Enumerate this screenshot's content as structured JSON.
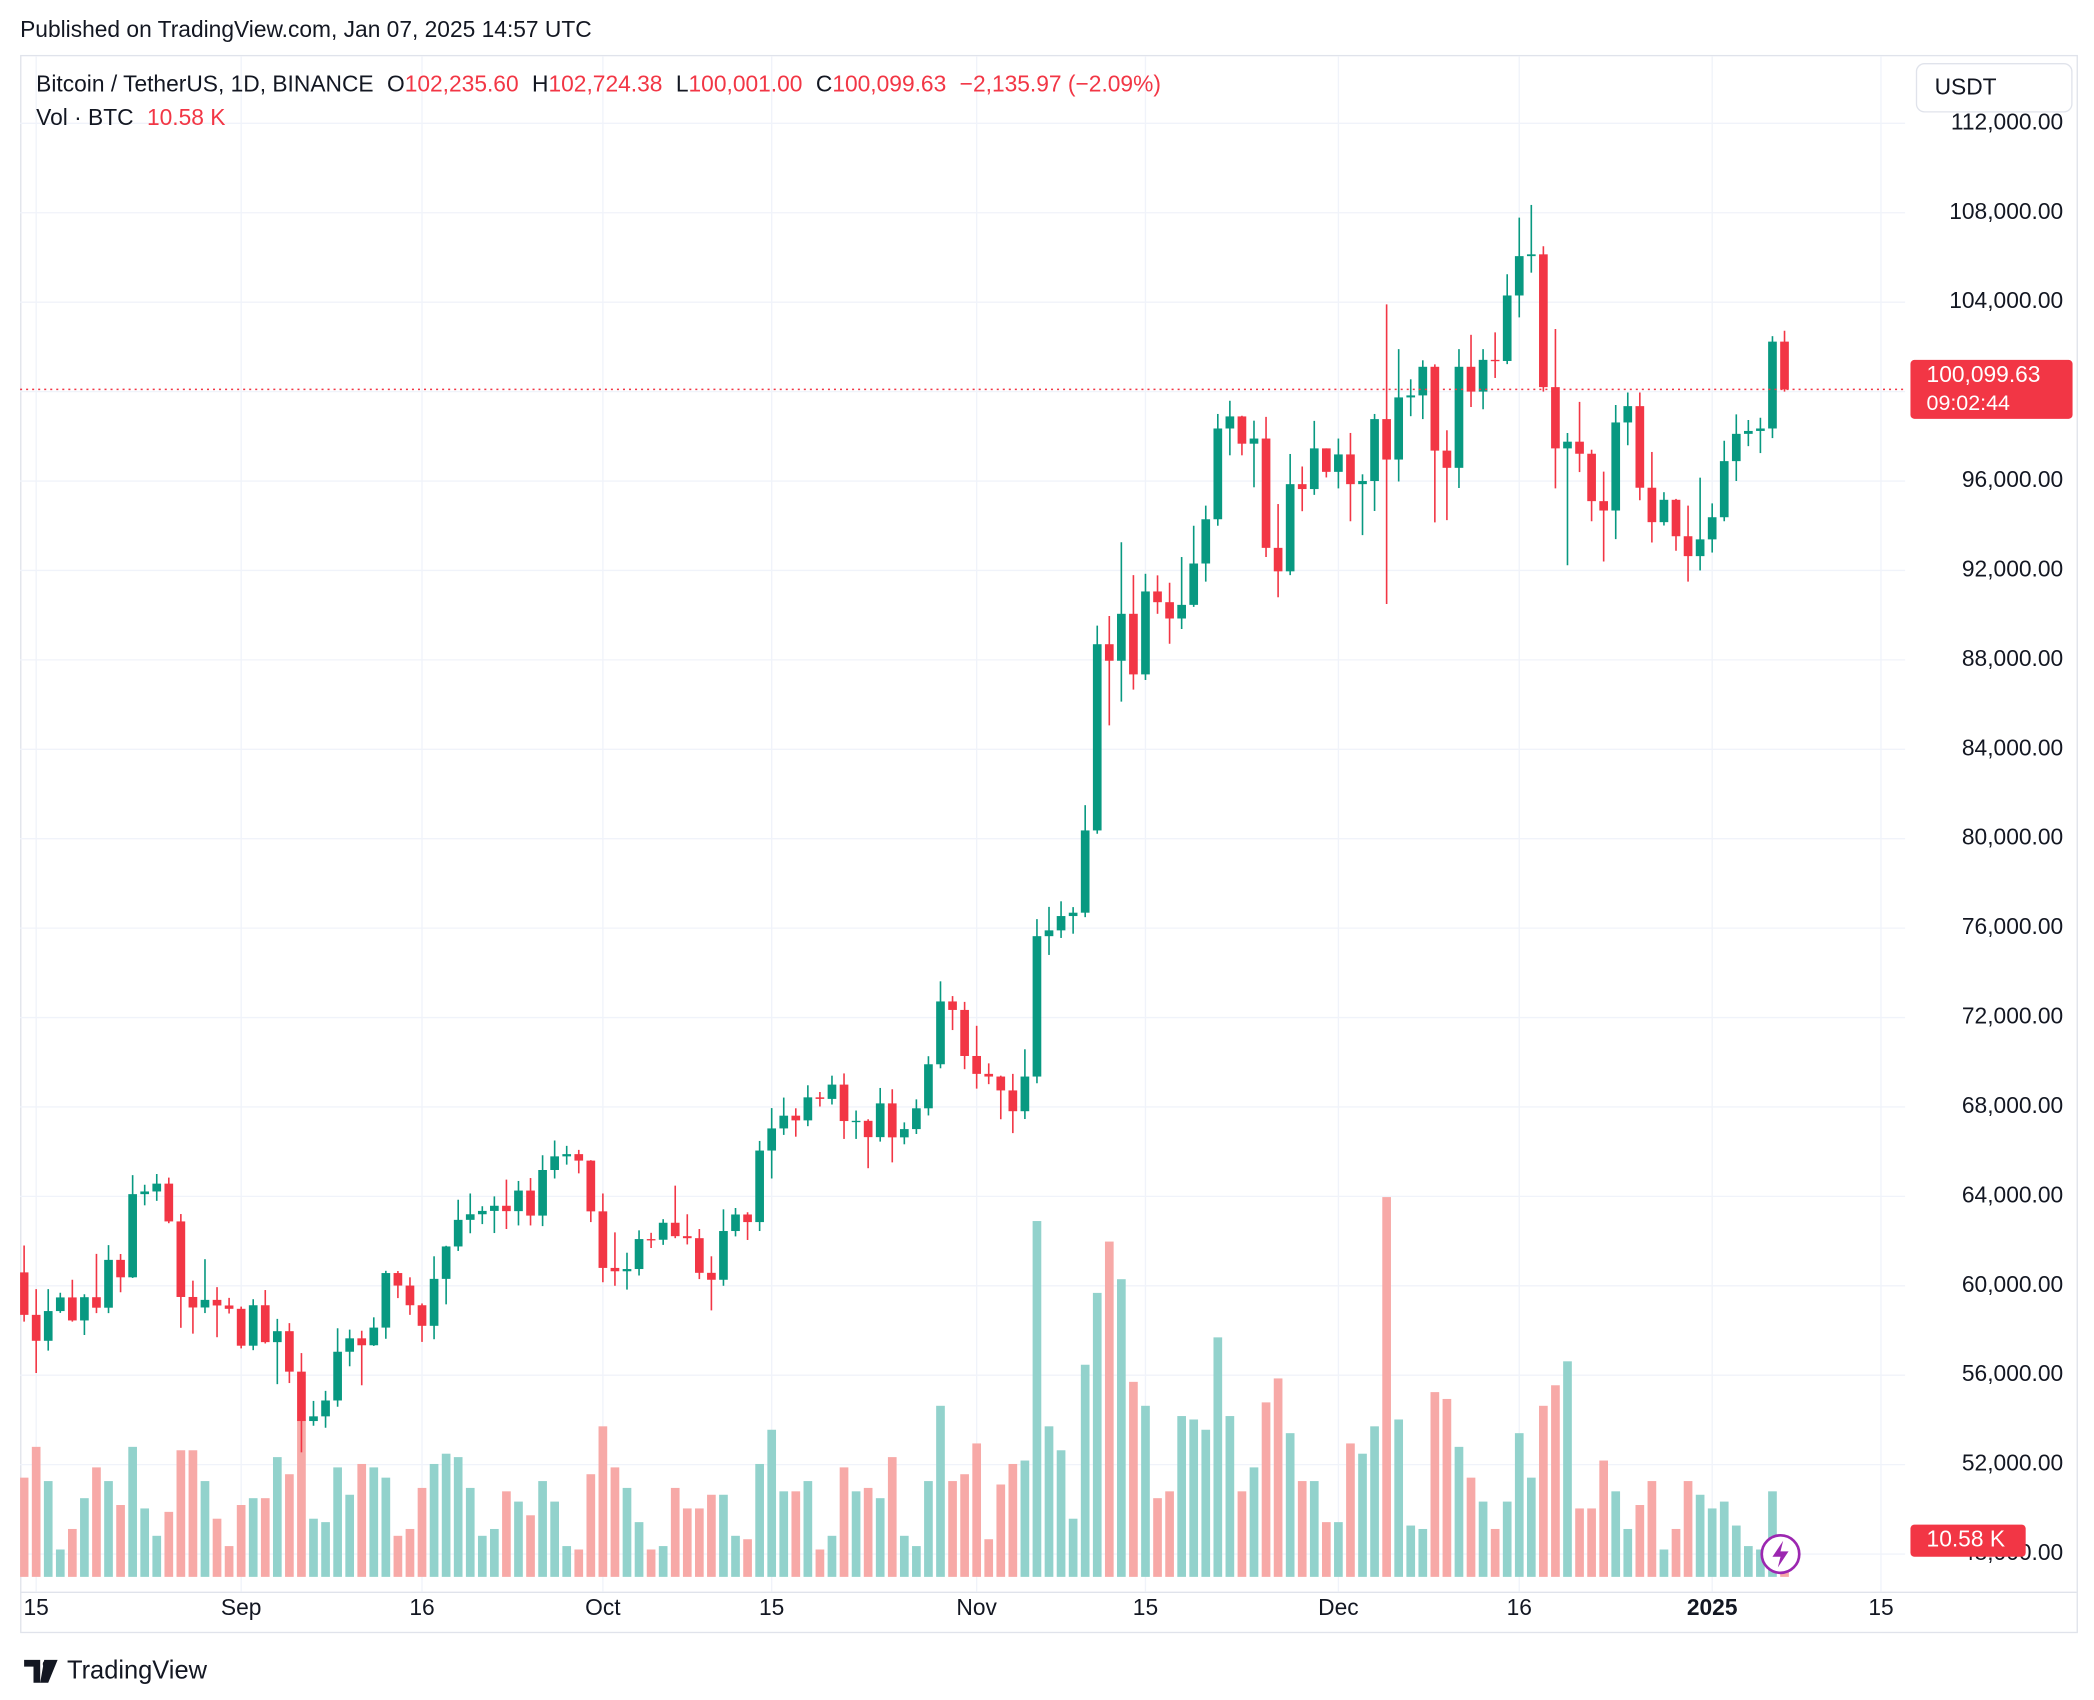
{
  "published": "Published on TradingView.com, Jan 07, 2025 14:57 UTC",
  "legend": {
    "symbol": "Bitcoin / TetherUS, 1D, BINANCE",
    "ohlc": [
      {
        "key": "O",
        "value": "102,235.60"
      },
      {
        "key": "H",
        "value": "102,724.38"
      },
      {
        "key": "L",
        "value": "100,001.00"
      },
      {
        "key": "C",
        "value": "100,099.63"
      }
    ],
    "change": "−2,135.97 (−2.09%)",
    "volume_name": "Vol · BTC",
    "volume_value": "10.58 K"
  },
  "currency": "USDT",
  "price_label": "100,099.63",
  "countdown": "09:02:44",
  "volume_label": "10.58 K",
  "brand": "TradingView",
  "chart_data": {
    "type": "candlestick",
    "up_color": "#089981",
    "down_color": "#f23645",
    "volume_up_color": "#92d2cc",
    "volume_down_color": "#f7a9a7",
    "grid": true,
    "xlim": [
      "2024-08-13",
      "2025-01-18"
    ],
    "ylim": [
      46500,
      115000
    ],
    "vlim": [
      0,
      130000
    ],
    "xticks": [
      {
        "value": "2024-08-15",
        "label": "15"
      },
      {
        "value": "2024-09-01",
        "label": "Sep"
      },
      {
        "value": "2024-09-16",
        "label": "16"
      },
      {
        "value": "2024-10-01",
        "label": "Oct"
      },
      {
        "value": "2024-10-15",
        "label": "15"
      },
      {
        "value": "2024-11-01",
        "label": "Nov"
      },
      {
        "value": "2024-11-15",
        "label": "15"
      },
      {
        "value": "2024-12-01",
        "label": "Dec"
      },
      {
        "value": "2024-12-16",
        "label": "16"
      },
      {
        "value": "2025-01-01",
        "label": "2025"
      },
      {
        "value": "2025-01-15",
        "label": "15"
      }
    ],
    "yticks": [
      {
        "value": 48000,
        "label": "48,000.00"
      },
      {
        "value": 52000,
        "label": "52,000.00"
      },
      {
        "value": 56000,
        "label": "56,000.00"
      },
      {
        "value": 60000,
        "label": "60,000.00"
      },
      {
        "value": 64000,
        "label": "64,000.00"
      },
      {
        "value": 68000,
        "label": "68,000.00"
      },
      {
        "value": 72000,
        "label": "72,000.00"
      },
      {
        "value": 76000,
        "label": "76,000.00"
      },
      {
        "value": 80000,
        "label": "80,000.00"
      },
      {
        "value": 84000,
        "label": "84,000.00"
      },
      {
        "value": 88000,
        "label": "88,000.00"
      },
      {
        "value": 92000,
        "label": "92,000.00"
      },
      {
        "value": 96000,
        "label": "96,000.00"
      },
      {
        "value": 100000,
        "label": "100,000.00"
      },
      {
        "value": 104000,
        "label": "104,000.00"
      },
      {
        "value": 108000,
        "label": "108,000.00"
      },
      {
        "value": 112000,
        "label": "112,000.00"
      }
    ],
    "x": [
      "2024-08-14",
      "2024-08-15",
      "2024-08-16",
      "2024-08-17",
      "2024-08-18",
      "2024-08-19",
      "2024-08-20",
      "2024-08-21",
      "2024-08-22",
      "2024-08-23",
      "2024-08-24",
      "2024-08-25",
      "2024-08-26",
      "2024-08-27",
      "2024-08-28",
      "2024-08-29",
      "2024-08-30",
      "2024-08-31",
      "2024-09-01",
      "2024-09-02",
      "2024-09-03",
      "2024-09-04",
      "2024-09-05",
      "2024-09-06",
      "2024-09-07",
      "2024-09-08",
      "2024-09-09",
      "2024-09-10",
      "2024-09-11",
      "2024-09-12",
      "2024-09-13",
      "2024-09-14",
      "2024-09-15",
      "2024-09-16",
      "2024-09-17",
      "2024-09-18",
      "2024-09-19",
      "2024-09-20",
      "2024-09-21",
      "2024-09-22",
      "2024-09-23",
      "2024-09-24",
      "2024-09-25",
      "2024-09-26",
      "2024-09-27",
      "2024-09-28",
      "2024-09-29",
      "2024-09-30",
      "2024-10-01",
      "2024-10-02",
      "2024-10-03",
      "2024-10-04",
      "2024-10-05",
      "2024-10-06",
      "2024-10-07",
      "2024-10-08",
      "2024-10-09",
      "2024-10-10",
      "2024-10-11",
      "2024-10-12",
      "2024-10-13",
      "2024-10-14",
      "2024-10-15",
      "2024-10-16",
      "2024-10-17",
      "2024-10-18",
      "2024-10-19",
      "2024-10-20",
      "2024-10-21",
      "2024-10-22",
      "2024-10-23",
      "2024-10-24",
      "2024-10-25",
      "2024-10-26",
      "2024-10-27",
      "2024-10-28",
      "2024-10-29",
      "2024-10-30",
      "2024-10-31",
      "2024-11-01",
      "2024-11-02",
      "2024-11-03",
      "2024-11-04",
      "2024-11-05",
      "2024-11-06",
      "2024-11-07",
      "2024-11-08",
      "2024-11-09",
      "2024-11-10",
      "2024-11-11",
      "2024-11-12",
      "2024-11-13",
      "2024-11-14",
      "2024-11-15",
      "2024-11-16",
      "2024-11-17",
      "2024-11-18",
      "2024-11-19",
      "2024-11-20",
      "2024-11-21",
      "2024-11-22",
      "2024-11-23",
      "2024-11-24",
      "2024-11-25",
      "2024-11-26",
      "2024-11-27",
      "2024-11-28",
      "2024-11-29",
      "2024-11-30",
      "2024-12-01",
      "2024-12-02",
      "2024-12-03",
      "2024-12-04",
      "2024-12-05",
      "2024-12-06",
      "2024-12-07",
      "2024-12-08",
      "2024-12-09",
      "2024-12-10",
      "2024-12-11",
      "2024-12-12",
      "2024-12-13",
      "2024-12-14",
      "2024-12-15",
      "2024-12-16",
      "2024-12-17",
      "2024-12-18",
      "2024-12-19",
      "2024-12-20",
      "2024-12-21",
      "2024-12-22",
      "2024-12-23",
      "2024-12-24",
      "2024-12-25",
      "2024-12-26",
      "2024-12-27",
      "2024-12-28",
      "2024-12-29",
      "2024-12-30",
      "2024-12-31",
      "2025-01-01",
      "2025-01-02",
      "2025-01-03",
      "2025-01-04",
      "2025-01-05",
      "2025-01-06",
      "2025-01-07"
    ],
    "open": [
      60600,
      58700,
      57540,
      58870,
      59480,
      58450,
      59490,
      59020,
      61160,
      60380,
      64100,
      64220,
      64570,
      62880,
      59500,
      59030,
      59370,
      59120,
      58970,
      57320,
      59130,
      57480,
      57970,
      56160,
      53950,
      54160,
      54870,
      57050,
      57650,
      57340,
      58130,
      60570,
      60010,
      59130,
      58210,
      60310,
      61760,
      62950,
      63200,
      63350,
      63580,
      63340,
      64260,
      63140,
      65180,
      65790,
      65890,
      65600,
      63330,
      60800,
      60650,
      60750,
      62090,
      62060,
      62820,
      62220,
      62130,
      60580,
      60270,
      62450,
      63190,
      62850,
      66050,
      67040,
      67610,
      67400,
      68430,
      68360,
      69000,
      67370,
      67380,
      66650,
      68160,
      66640,
      67010,
      67940,
      69910,
      72720,
      72340,
      70280,
      69480,
      69360,
      68740,
      67810,
      69360,
      75640,
      75900,
      76540,
      76690,
      80370,
      88700,
      87960,
      90060,
      87350,
      91060,
      90580,
      89850,
      90460,
      92310,
      94290,
      98350,
      98890,
      97670,
      97900,
      93010,
      91960,
      95860,
      95640,
      97460,
      96410,
      97190,
      95860,
      96000,
      98770,
      96960,
      99740,
      99830,
      101110,
      97360,
      96590,
      101110,
      100000,
      101420,
      101370,
      104300,
      106060,
      106140,
      100200,
      97460,
      97760,
      97220,
      95100,
      94680,
      98620,
      99350,
      95700,
      94160,
      95160,
      93530,
      92640,
      93390,
      94380,
      96890,
      98110,
      98240,
      98350,
      102235.6
    ],
    "high": [
      61800,
      59850,
      59850,
      59690,
      60270,
      59620,
      61430,
      61820,
      61420,
      64950,
      64520,
      65000,
      64840,
      63210,
      60230,
      61190,
      59940,
      59460,
      59070,
      59400,
      59810,
      58520,
      58330,
      56990,
      54850,
      55300,
      58100,
      58040,
      57990,
      58590,
      60670,
      60660,
      60380,
      59210,
      61320,
      61790,
      63850,
      64130,
      63560,
      64000,
      64750,
      64690,
      64820,
      65840,
      66500,
      66260,
      66080,
      65620,
      64130,
      62390,
      61480,
      62480,
      62370,
      62980,
      64480,
      63200,
      62540,
      61320,
      63420,
      63480,
      63290,
      66480,
      67950,
      68420,
      67940,
      68970,
      68670,
      69400,
      69500,
      67840,
      67450,
      68850,
      68790,
      67310,
      68340,
      70270,
      73620,
      72960,
      72700,
      71630,
      69950,
      69400,
      69480,
      70580,
      76400,
      76950,
      77200,
      76940,
      81500,
      89530,
      89960,
      93260,
      91790,
      91850,
      91780,
      91450,
      92600,
      94000,
      94900,
      99000,
      99590,
      98920,
      98700,
      98870,
      94970,
      97210,
      96650,
      98690,
      97460,
      97900,
      98150,
      96300,
      99000,
      103900,
      101900,
      100550,
      101400,
      101220,
      98270,
      101900,
      102540,
      101900,
      102650,
      105250,
      107780,
      108350,
      106500,
      102800,
      98150,
      99540,
      97400,
      96420,
      99400,
      99960,
      99960,
      97300,
      95500,
      95200,
      94900,
      96150,
      95000,
      97800,
      98980,
      98730,
      98830,
      102480,
      102724.38
    ],
    "low": [
      58400,
      56100,
      57100,
      58790,
      58400,
      57800,
      58780,
      58780,
      59710,
      60350,
      63600,
      63800,
      62800,
      58120,
      57860,
      58780,
      57700,
      58760,
      57200,
      57120,
      57420,
      55600,
      55650,
      52550,
      53740,
      53650,
      54590,
      56400,
      55550,
      57310,
      57630,
      59450,
      58700,
      57490,
      57610,
      59170,
      61560,
      62350,
      62760,
      62360,
      62540,
      62700,
      62700,
      62670,
      64800,
      65420,
      65030,
      62850,
      60160,
      60000,
      59830,
      60460,
      61690,
      61830,
      62130,
      61850,
      60300,
      58900,
      60000,
      62210,
      62050,
      62450,
      64800,
      66750,
      66670,
      67140,
      68020,
      68110,
      66570,
      66570,
      65260,
      66450,
      65520,
      66330,
      66790,
      67620,
      69730,
      71440,
      69690,
      68820,
      69020,
      67450,
      66830,
      67460,
      69060,
      74800,
      75560,
      75750,
      76490,
      80220,
      85070,
      86130,
      86670,
      87100,
      90060,
      88720,
      89380,
      90370,
      91500,
      94000,
      97150,
      97150,
      95720,
      92600,
      90800,
      91790,
      94650,
      95380,
      96160,
      95670,
      94200,
      93580,
      94660,
      90500,
      95980,
      98900,
      98770,
      94150,
      94250,
      95690,
      99310,
      99210,
      100610,
      101230,
      103320,
      105320,
      100000,
      95670,
      92230,
      96400,
      94200,
      92400,
      93400,
      97600,
      95140,
      93250,
      94010,
      92880,
      91500,
      92000,
      92800,
      94200,
      96000,
      97560,
      97250,
      97920,
      100001
    ],
    "close": [
      58700,
      57540,
      58870,
      59480,
      58450,
      59490,
      59020,
      61160,
      60380,
      64100,
      64220,
      64570,
      62880,
      59500,
      59030,
      59370,
      59120,
      58970,
      57320,
      59130,
      57480,
      57970,
      56160,
      53950,
      54160,
      54870,
      57050,
      57650,
      57340,
      58130,
      60570,
      60010,
      59130,
      58210,
      60310,
      61760,
      62950,
      63200,
      63350,
      63580,
      63340,
      64260,
      63140,
      65180,
      65790,
      65890,
      65600,
      63330,
      60800,
      60650,
      60750,
      62090,
      62060,
      62820,
      62220,
      62130,
      60580,
      60270,
      62450,
      63190,
      62850,
      66050,
      67040,
      67610,
      67400,
      68430,
      68360,
      69000,
      67370,
      67380,
      66650,
      68160,
      66640,
      67010,
      67940,
      69910,
      72720,
      72340,
      70280,
      69480,
      69360,
      68740,
      67810,
      69360,
      75640,
      75900,
      76540,
      76690,
      80370,
      88700,
      87960,
      90060,
      87350,
      91060,
      90580,
      89850,
      90460,
      92310,
      94290,
      98350,
      98890,
      97670,
      97900,
      93010,
      91960,
      95860,
      95640,
      97460,
      96410,
      97190,
      95860,
      96000,
      98770,
      96960,
      99740,
      99830,
      101110,
      97360,
      96590,
      101110,
      100000,
      101420,
      101370,
      104300,
      106060,
      106140,
      100200,
      97460,
      97760,
      97220,
      95100,
      94680,
      98620,
      99350,
      95700,
      94160,
      95160,
      93530,
      92640,
      93390,
      94380,
      96890,
      98110,
      98240,
      98350,
      102235.6,
      100099.63
    ],
    "volume": [
      29000,
      38000,
      28000,
      8000,
      14000,
      23000,
      32000,
      28000,
      21000,
      38000,
      20000,
      12000,
      19000,
      37000,
      37000,
      28000,
      17000,
      9000,
      21000,
      23000,
      23000,
      35000,
      30000,
      46000,
      17000,
      16000,
      32000,
      24000,
      33000,
      32000,
      29000,
      12000,
      14000,
      26000,
      33000,
      36000,
      35000,
      26000,
      12000,
      14000,
      25000,
      22000,
      18000,
      28000,
      22000,
      9000,
      8000,
      30000,
      44000,
      32000,
      26000,
      16000,
      8000,
      9000,
      26000,
      20000,
      20000,
      24000,
      24000,
      12000,
      11000,
      33000,
      43000,
      25000,
      25000,
      28000,
      8000,
      12000,
      32000,
      25000,
      26000,
      23000,
      35000,
      12000,
      9000,
      28000,
      50000,
      28000,
      30000,
      39000,
      11000,
      27000,
      33000,
      34000,
      104000,
      44000,
      37000,
      17000,
      62000,
      83000,
      98000,
      87000,
      57000,
      50000,
      23000,
      25000,
      47000,
      46000,
      43000,
      70000,
      47000,
      25000,
      32000,
      51000,
      58000,
      42000,
      28000,
      28000,
      16000,
      16000,
      39000,
      36000,
      44000,
      111000,
      46000,
      15000,
      14000,
      54000,
      52000,
      38000,
      29000,
      22000,
      14000,
      22000,
      42000,
      29000,
      50000,
      56000,
      63000,
      20000,
      20000,
      34000,
      25000,
      14000,
      21000,
      28000,
      8000,
      14000,
      28000,
      24000,
      20000,
      22000,
      15000,
      9000,
      8000,
      25000,
      10580
    ]
  }
}
